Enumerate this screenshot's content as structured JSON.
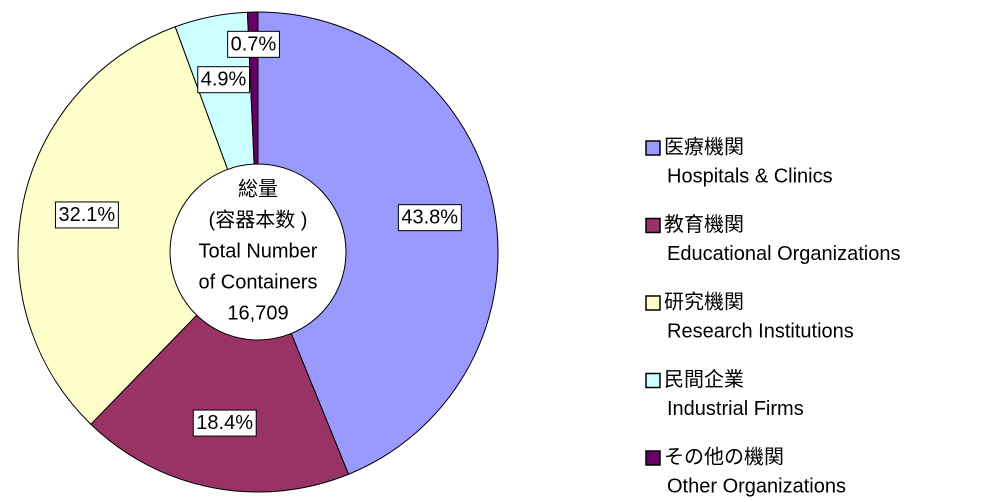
{
  "chart_data": {
    "type": "donut",
    "categories": [
      "医療機関",
      "教育機関",
      "研究機関",
      "民間企業",
      "その他の機関"
    ],
    "categories_en": [
      "Hospitals & Clinics",
      "Educational Organizations",
      "Research Institutions",
      "Industrial Firms",
      "Other Organizations"
    ],
    "values": [
      43.8,
      18.4,
      32.1,
      4.9,
      0.7
    ],
    "value_labels": [
      "43.8%",
      "18.4%",
      "32.1%",
      "4.9%",
      "0.7%"
    ],
    "colors": [
      "#9999ff",
      "#993366",
      "#ffffcc",
      "#ccffff",
      "#660066"
    ],
    "center_text": [
      "総量",
      "(容器本数 )",
      "Total Number",
      "of Containers",
      "16,709"
    ],
    "legend": "right"
  }
}
